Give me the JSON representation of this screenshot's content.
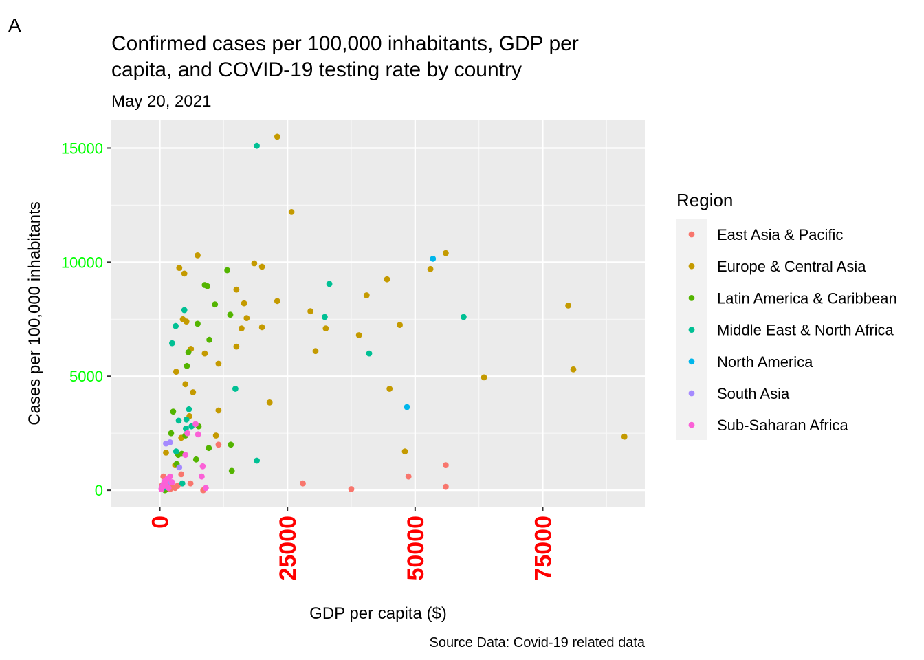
{
  "tag": "A",
  "chart_data": {
    "type": "scatter",
    "title_line1": "Confirmed cases per 100,000 inhabitants, GDP per",
    "title_line2": "capita, and COVID-19 testing rate by country",
    "subtitle": "May 20, 2021",
    "xlabel": "GDP per capita ($)",
    "ylabel": "Cases per 100,000 inhabitants",
    "caption": "Source Data: Covid-19 related data",
    "xlim": [
      -9500,
      95000
    ],
    "ylim": [
      -750,
      16250
    ],
    "x_ticks": [
      0,
      25000,
      50000,
      75000
    ],
    "x_tick_labels": [
      "0",
      "25000",
      "50000",
      "75000"
    ],
    "y_ticks": [
      0,
      5000,
      10000,
      15000
    ],
    "y_tick_labels": [
      "0",
      "5000",
      "10000",
      "15000"
    ],
    "x_tick_color": "#ff0000",
    "y_tick_color": "#00ff00",
    "panel_background": "#ebebeb",
    "gridlines": true,
    "legend": {
      "title": "Region",
      "position": "right"
    },
    "series": [
      {
        "name": "East Asia & Pacific",
        "color": "#f8766d",
        "points": [
          [
            400,
            200
          ],
          [
            700,
            600
          ],
          [
            1000,
            100
          ],
          [
            1500,
            300
          ],
          [
            2000,
            50
          ],
          [
            2500,
            150
          ],
          [
            3000,
            100
          ],
          [
            3500,
            200
          ],
          [
            4200,
            700
          ],
          [
            6000,
            300
          ],
          [
            8500,
            0
          ],
          [
            11500,
            2000
          ],
          [
            28000,
            300
          ],
          [
            37500,
            50
          ],
          [
            48700,
            600
          ],
          [
            56000,
            1100
          ],
          [
            56000,
            150
          ]
        ]
      },
      {
        "name": "Europe & Central Asia",
        "color": "#c49a00",
        "points": [
          [
            1200,
            1650
          ],
          [
            3000,
            1100
          ],
          [
            3200,
            5200
          ],
          [
            3800,
            9750
          ],
          [
            4200,
            2300
          ],
          [
            4500,
            7500
          ],
          [
            4800,
            9500
          ],
          [
            5000,
            4650
          ],
          [
            5200,
            7400
          ],
          [
            5800,
            3250
          ],
          [
            6100,
            6200
          ],
          [
            6500,
            4300
          ],
          [
            7400,
            10300
          ],
          [
            8800,
            6000
          ],
          [
            11500,
            5550
          ],
          [
            11500,
            3500
          ],
          [
            11000,
            2400
          ],
          [
            15000,
            8800
          ],
          [
            15000,
            6300
          ],
          [
            16000,
            7100
          ],
          [
            16500,
            8200
          ],
          [
            17000,
            7550
          ],
          [
            18500,
            9950
          ],
          [
            20000,
            9800
          ],
          [
            20000,
            7150
          ],
          [
            21500,
            3850
          ],
          [
            23000,
            8300
          ],
          [
            23000,
            15500
          ],
          [
            25800,
            12200
          ],
          [
            29500,
            7850
          ],
          [
            30500,
            6100
          ],
          [
            32500,
            7100
          ],
          [
            39000,
            6800
          ],
          [
            40500,
            8550
          ],
          [
            44500,
            9250
          ],
          [
            45000,
            4450
          ],
          [
            47000,
            7250
          ],
          [
            48000,
            1700
          ],
          [
            53000,
            9700
          ],
          [
            56000,
            10400
          ],
          [
            63500,
            4950
          ],
          [
            80000,
            8100
          ],
          [
            81000,
            5300
          ],
          [
            91000,
            2350
          ]
        ]
      },
      {
        "name": "Latin America & Caribbean",
        "color": "#53b400",
        "points": [
          [
            1000,
            0
          ],
          [
            2200,
            2500
          ],
          [
            2600,
            3450
          ],
          [
            3300,
            1150
          ],
          [
            3600,
            1550
          ],
          [
            4300,
            1600
          ],
          [
            5000,
            2400
          ],
          [
            5300,
            5450
          ],
          [
            5600,
            6050
          ],
          [
            7100,
            1350
          ],
          [
            7400,
            7300
          ],
          [
            7600,
            2800
          ],
          [
            8800,
            9000
          ],
          [
            9300,
            8950
          ],
          [
            9600,
            1850
          ],
          [
            9700,
            6600
          ],
          [
            10800,
            8150
          ],
          [
            13200,
            9650
          ],
          [
            13800,
            7700
          ],
          [
            13900,
            2000
          ],
          [
            14100,
            850
          ]
        ]
      },
      {
        "name": "Middle East & North Africa",
        "color": "#00c094",
        "points": [
          [
            700,
            100
          ],
          [
            2400,
            6450
          ],
          [
            3100,
            7200
          ],
          [
            3700,
            3050
          ],
          [
            4400,
            300
          ],
          [
            4800,
            7900
          ],
          [
            5200,
            3100
          ],
          [
            5700,
            3550
          ],
          [
            6200,
            2800
          ],
          [
            14800,
            4450
          ],
          [
            19000,
            1300
          ],
          [
            19000,
            15100
          ],
          [
            32300,
            7600
          ],
          [
            33200,
            9050
          ],
          [
            41000,
            6000
          ],
          [
            59500,
            7600
          ],
          [
            3200,
            1700
          ],
          [
            5100,
            2700
          ]
        ]
      },
      {
        "name": "North America",
        "color": "#00b6eb",
        "points": [
          [
            48400,
            3650
          ],
          [
            53500,
            10150
          ]
        ]
      },
      {
        "name": "South Asia",
        "color": "#a58aff",
        "points": [
          [
            600,
            200
          ],
          [
            1200,
            2050
          ],
          [
            2000,
            2100
          ],
          [
            2200,
            350
          ],
          [
            3800,
            1000
          ]
        ]
      },
      {
        "name": "Sub-Saharan Africa",
        "color": "#fb61d7",
        "points": [
          [
            300,
            50
          ],
          [
            500,
            150
          ],
          [
            800,
            300
          ],
          [
            1000,
            400
          ],
          [
            1200,
            200
          ],
          [
            1500,
            500
          ],
          [
            1700,
            100
          ],
          [
            2000,
            600
          ],
          [
            2400,
            350
          ],
          [
            5000,
            1550
          ],
          [
            5400,
            2500
          ],
          [
            7000,
            2900
          ],
          [
            7500,
            2450
          ],
          [
            8200,
            600
          ],
          [
            8400,
            1050
          ],
          [
            9000,
            100
          ]
        ]
      }
    ]
  }
}
